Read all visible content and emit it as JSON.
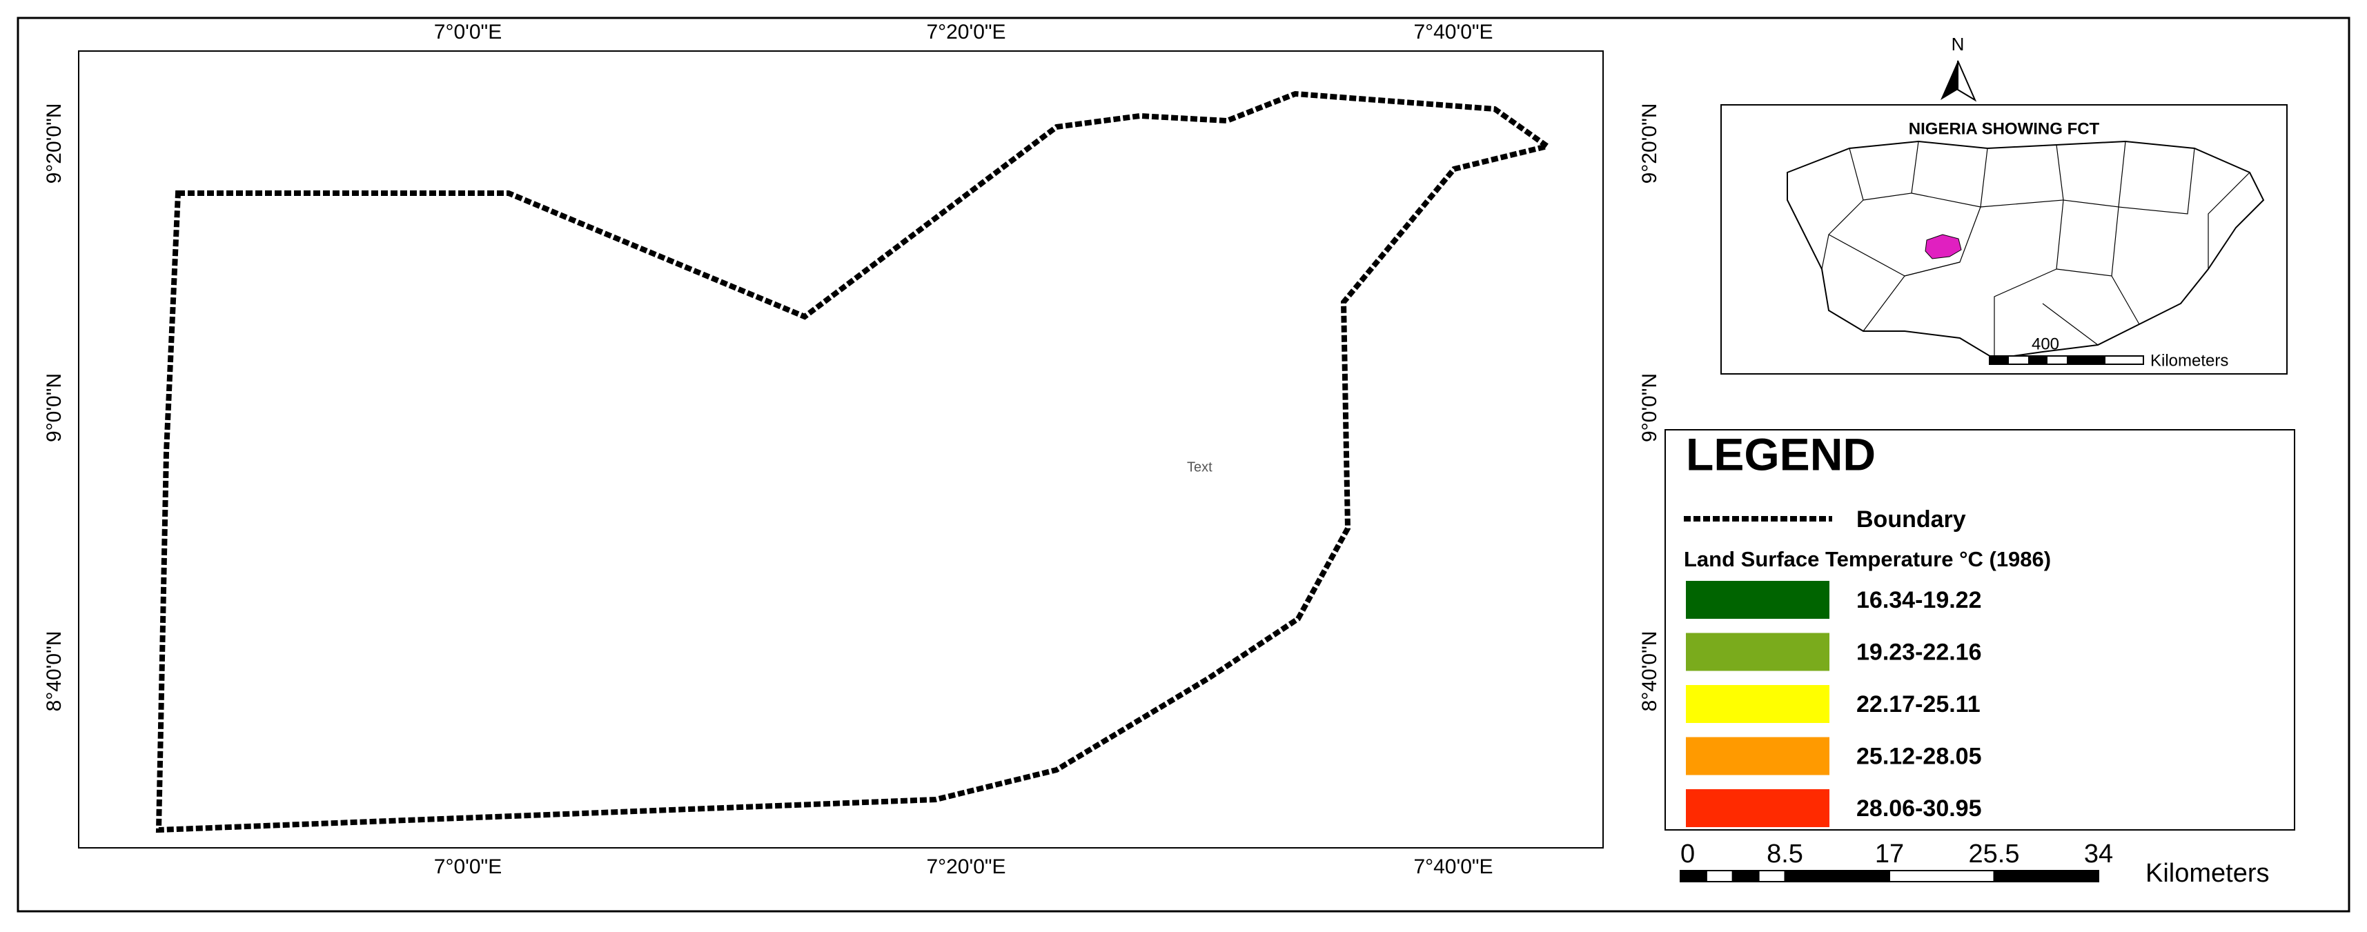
{
  "map": {
    "lon_labels": [
      "7°0'0\"E",
      "7°20'0\"E",
      "7°40'0\"E"
    ],
    "lat_labels": [
      "9°20'0\"N",
      "9°0'0\"N",
      "8°40'0\"N"
    ],
    "stray_label": "Text"
  },
  "inset": {
    "north": "N",
    "title": "NIGERIA SHOWING FCT",
    "scale_value": 400,
    "scale_unit": "Kilometers"
  },
  "legend": {
    "title": "LEGEND",
    "boundary": "Boundary",
    "subtitle": "Land Surface Temperature °C (1986)",
    "classes": [
      {
        "label": "16.34-19.22",
        "color": "#006400"
      },
      {
        "label": "19.23-22.16",
        "color": "#7aab1c"
      },
      {
        "label": "22.17-25.11",
        "color": "#ffff00"
      },
      {
        "label": "25.12-28.05",
        "color": "#ff9a00"
      },
      {
        "label": "28.06-30.95",
        "color": "#ff2a00"
      }
    ]
  },
  "scale_bar": {
    "ticks": [
      0,
      8.5,
      17,
      25.5,
      34
    ],
    "unit": "Kilometers"
  }
}
